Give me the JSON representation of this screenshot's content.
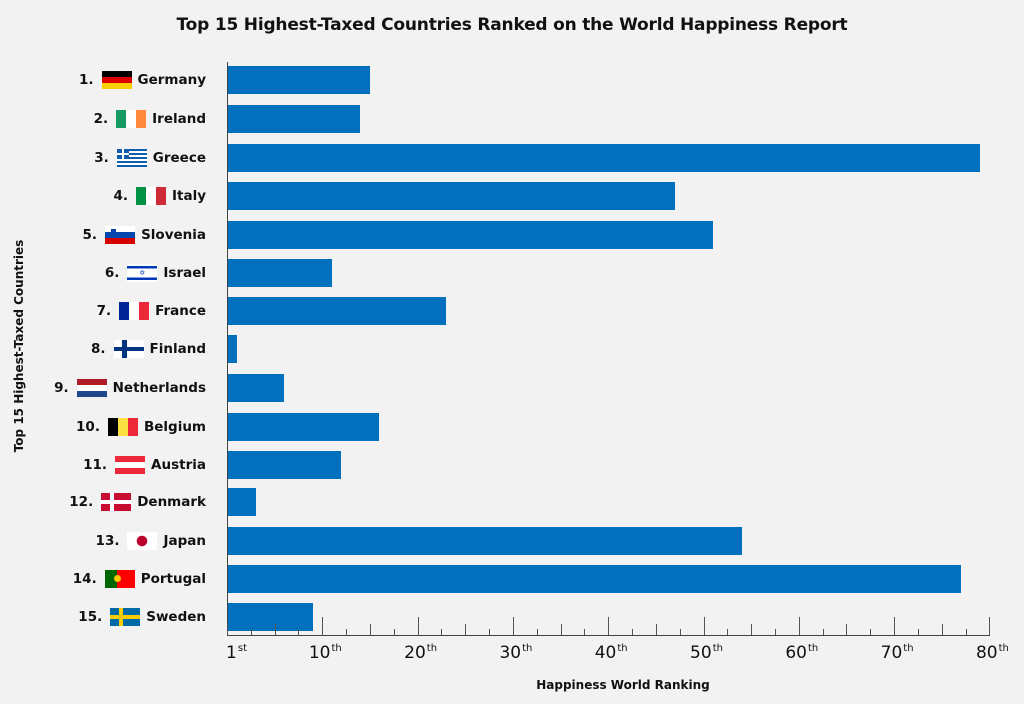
{
  "chart_data": {
    "type": "bar",
    "orientation": "horizontal",
    "title": "Top 15 Highest-Taxed Countries Ranked on the World Happiness Report",
    "xlabel": "Happiness World Ranking",
    "ylabel": "Top 15 Highest-Taxed Countries",
    "xlim": [
      0,
      80
    ],
    "xticks": [
      {
        "value": 1,
        "num": "1",
        "suffix": "st"
      },
      {
        "value": 10,
        "num": "10",
        "suffix": "th"
      },
      {
        "value": 20,
        "num": "20",
        "suffix": "th"
      },
      {
        "value": 30,
        "num": "30",
        "suffix": "th"
      },
      {
        "value": 40,
        "num": "40",
        "suffix": "th"
      },
      {
        "value": 50,
        "num": "50",
        "suffix": "th"
      },
      {
        "value": 60,
        "num": "60",
        "suffix": "th"
      },
      {
        "value": 70,
        "num": "70",
        "suffix": "th"
      },
      {
        "value": 80,
        "num": "80",
        "suffix": "th"
      }
    ],
    "bar_color": "#0170bf",
    "categories": [
      "Germany",
      "Ireland",
      "Greece",
      "Italy",
      "Slovenia",
      "Israel",
      "France",
      "Finland",
      "Netherlands",
      "Belgium",
      "Austria",
      "Denmark",
      "Japan",
      "Portugal",
      "Sweden"
    ],
    "ranks": [
      "1.",
      "2.",
      "3.",
      "4.",
      "5.",
      "6.",
      "7.",
      "8.",
      "9.",
      "10.",
      "11.",
      "12.",
      "13.",
      "14.",
      "15."
    ],
    "values": [
      15,
      14,
      79,
      47,
      51,
      11,
      23,
      1,
      6,
      16,
      12,
      3,
      54,
      77,
      9
    ],
    "flags": [
      "germany-flag",
      "ireland-flag",
      "greece-flag",
      "italy-flag",
      "slovenia-flag",
      "israel-flag",
      "france-flag",
      "finland-flag",
      "netherlands-flag",
      "belgium-flag",
      "austria-flag",
      "denmark-flag",
      "japan-flag",
      "portugal-flag",
      "sweden-flag"
    ],
    "grid": false,
    "legend": null
  }
}
